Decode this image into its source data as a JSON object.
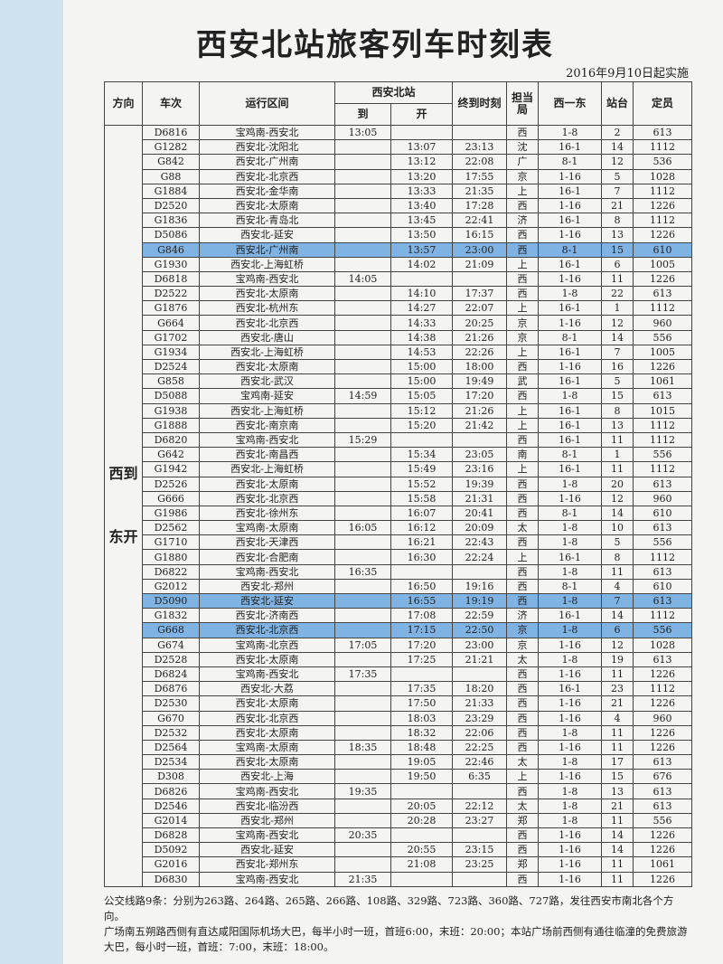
{
  "header": {
    "title": "西安北站旅客列车时刻表",
    "effective": "2016年9月10日起实施"
  },
  "table": {
    "columns": {
      "direction": "方向",
      "train": "车次",
      "route": "运行区间",
      "station": "西安北站",
      "arrive": "到",
      "depart": "开",
      "terminal": "终到时刻",
      "bureau": "担当局",
      "order": "西一东",
      "platform": "站台",
      "capacity": "定员"
    },
    "direction": "西到东开",
    "rows": [
      {
        "cells": [
          "D6816",
          "宝鸡南-西安北",
          "13:05",
          null,
          null,
          "西",
          "1-8",
          "2",
          "613"
        ]
      },
      {
        "cells": [
          "G1282",
          "西安北-沈阳北",
          null,
          "13:07",
          "23:13",
          "沈",
          "16-1",
          "14",
          "1112"
        ]
      },
      {
        "cells": [
          "G842",
          "西安北-广州南",
          null,
          "13:12",
          "22:08",
          "广",
          "8-1",
          "12",
          "536"
        ]
      },
      {
        "cells": [
          "G88",
          "西安北-北京西",
          null,
          "13:20",
          "17:55",
          "京",
          "1-16",
          "5",
          "1028"
        ]
      },
      {
        "cells": [
          "G1884",
          "西安北-金华南",
          null,
          "13:33",
          "21:35",
          "上",
          "16-1",
          "7",
          "1112"
        ]
      },
      {
        "cells": [
          "D2520",
          "西安北-太原南",
          null,
          "13:40",
          "17:28",
          "西",
          "1-16",
          "21",
          "1226"
        ]
      },
      {
        "cells": [
          "G1836",
          "西安北-青岛北",
          null,
          "13:45",
          "22:41",
          "济",
          "16-1",
          "8",
          "1112"
        ]
      },
      {
        "cells": [
          "D5086",
          "西安北-延安",
          null,
          "13:50",
          "16:15",
          "西",
          "1-16",
          "13",
          "1226"
        ]
      },
      {
        "cells": [
          "G846",
          "西安北-广州南",
          null,
          "13:57",
          "23:00",
          "西",
          "8-1",
          "15",
          "610"
        ],
        "highlight": true
      },
      {
        "cells": [
          "G1930",
          "西安北-上海虹桥",
          null,
          "14:02",
          "21:09",
          "上",
          "16-1",
          "6",
          "1005"
        ]
      },
      {
        "cells": [
          "D6818",
          "宝鸡南-西安北",
          "14:05",
          null,
          null,
          "西",
          "1-16",
          "11",
          "1226"
        ]
      },
      {
        "cells": [
          "D2522",
          "西安北-太原南",
          null,
          "14:10",
          "17:37",
          "西",
          "1-8",
          "22",
          "613"
        ]
      },
      {
        "cells": [
          "G1876",
          "西安北-杭州东",
          null,
          "14:27",
          "22:07",
          "上",
          "16-1",
          "1",
          "1112"
        ]
      },
      {
        "cells": [
          "G664",
          "西安北-北京西",
          null,
          "14:33",
          "20:25",
          "京",
          "1-16",
          "12",
          "960"
        ]
      },
      {
        "cells": [
          "G1702",
          "西安北-唐山",
          null,
          "14:38",
          "21:26",
          "京",
          "8-1",
          "14",
          "556"
        ]
      },
      {
        "cells": [
          "G1934",
          "西安北-上海虹桥",
          null,
          "14:53",
          "22:26",
          "上",
          "16-1",
          "7",
          "1005"
        ]
      },
      {
        "cells": [
          "D2524",
          "西安北-太原南",
          null,
          "15:00",
          "18:00",
          "西",
          "1-16",
          "16",
          "1226"
        ]
      },
      {
        "cells": [
          "G858",
          "西安北-武汉",
          null,
          "15:00",
          "19:49",
          "武",
          "16-1",
          "5",
          "1061"
        ]
      },
      {
        "cells": [
          "D5088",
          "宝鸡南-延安",
          "14:59",
          "15:05",
          "17:20",
          "西",
          "1-8",
          "15",
          "613"
        ]
      },
      {
        "cells": [
          "G1938",
          "西安北-上海虹桥",
          null,
          "15:12",
          "21:26",
          "上",
          "16-1",
          "8",
          "1015"
        ]
      },
      {
        "cells": [
          "G1888",
          "西安北-南京南",
          null,
          "15:20",
          "21:42",
          "上",
          "16-1",
          "13",
          "1112"
        ]
      },
      {
        "cells": [
          "D6820",
          "宝鸡南-西安北",
          "15:29",
          null,
          null,
          "西",
          "16-1",
          "11",
          "1112"
        ]
      },
      {
        "cells": [
          "G642",
          "西安北-南昌西",
          null,
          "15:34",
          "23:05",
          "南",
          "8-1",
          "1",
          "556"
        ]
      },
      {
        "cells": [
          "G1942",
          "西安北-上海虹桥",
          null,
          "15:49",
          "23:16",
          "上",
          "16-1",
          "11",
          "1112"
        ]
      },
      {
        "cells": [
          "D2526",
          "西安北-太原南",
          null,
          "15:52",
          "19:39",
          "西",
          "1-8",
          "20",
          "613"
        ]
      },
      {
        "cells": [
          "G666",
          "西安北-北京西",
          null,
          "15:58",
          "21:31",
          "西",
          "1-16",
          "12",
          "960"
        ]
      },
      {
        "cells": [
          "G1986",
          "西安北-徐州东",
          null,
          "16:07",
          "20:41",
          "西",
          "8-1",
          "14",
          "610"
        ]
      },
      {
        "cells": [
          "D2562",
          "宝鸡南-太原南",
          "16:05",
          "16:12",
          "20:09",
          "太",
          "1-8",
          "10",
          "613"
        ]
      },
      {
        "cells": [
          "G1710",
          "西安北-天津西",
          null,
          "16:21",
          "22:43",
          "西",
          "1-8",
          "5",
          "556"
        ]
      },
      {
        "cells": [
          "G1880",
          "西安北-合肥南",
          null,
          "16:30",
          "22:24",
          "上",
          "16-1",
          "8",
          "1112"
        ]
      },
      {
        "cells": [
          "D6822",
          "宝鸡南-西安北",
          "16:35",
          null,
          null,
          "西",
          "1-8",
          "11",
          "613"
        ]
      },
      {
        "cells": [
          "G2012",
          "西安北-郑州",
          null,
          "16:50",
          "19:16",
          "西",
          "8-1",
          "4",
          "610"
        ]
      },
      {
        "cells": [
          "D5090",
          "西安北-延安",
          null,
          "16:55",
          "19:19",
          "西",
          "1-8",
          "7",
          "613"
        ],
        "highlight": true
      },
      {
        "cells": [
          "G1832",
          "西安北-济南西",
          null,
          "17:08",
          "22:59",
          "济",
          "16-1",
          "14",
          "1112"
        ]
      },
      {
        "cells": [
          "G668",
          "西安北-北京西",
          null,
          "17:15",
          "22:50",
          "京",
          "1-8",
          "6",
          "556"
        ],
        "highlight": true
      },
      {
        "cells": [
          "G674",
          "宝鸡南-北京西",
          "17:05",
          "17:20",
          "23:00",
          "京",
          "1-16",
          "12",
          "1028"
        ]
      },
      {
        "cells": [
          "D2528",
          "西安北-太原南",
          null,
          "17:25",
          "21:21",
          "太",
          "1-8",
          "19",
          "613"
        ]
      },
      {
        "cells": [
          "D6824",
          "宝鸡南-西安北",
          "17:35",
          null,
          null,
          "西",
          "1-16",
          "11",
          "1226"
        ]
      },
      {
        "cells": [
          "D6876",
          "西安北-大荔",
          null,
          "17:35",
          "18:20",
          "西",
          "16-1",
          "23",
          "1112"
        ]
      },
      {
        "cells": [
          "D2530",
          "西安北-太原南",
          null,
          "17:50",
          "21:33",
          "西",
          "1-16",
          "21",
          "1226"
        ]
      },
      {
        "cells": [
          "G670",
          "西安北-北京西",
          null,
          "18:03",
          "23:29",
          "西",
          "1-16",
          "4",
          "960"
        ]
      },
      {
        "cells": [
          "D2532",
          "西安北-太原南",
          null,
          "18:32",
          "22:06",
          "西",
          "1-8",
          "11",
          "1226"
        ]
      },
      {
        "cells": [
          "D2564",
          "宝鸡南-太原南",
          "18:35",
          "18:48",
          "22:25",
          "西",
          "1-16",
          "11",
          "1226"
        ]
      },
      {
        "cells": [
          "D2534",
          "西安北-太原南",
          null,
          "19:05",
          "22:46",
          "太",
          "1-8",
          "17",
          "613"
        ]
      },
      {
        "cells": [
          "D308",
          "西安北-上海",
          null,
          "19:50",
          "6:35",
          "上",
          "1-16",
          "15",
          "676"
        ]
      },
      {
        "cells": [
          "D6826",
          "宝鸡南-西安北",
          "19:35",
          null,
          null,
          "西",
          "1-8",
          "13",
          "613"
        ]
      },
      {
        "cells": [
          "D2546",
          "西安北-临汾西",
          null,
          "20:05",
          "22:12",
          "太",
          "1-8",
          "21",
          "613"
        ]
      },
      {
        "cells": [
          "G2014",
          "西安北-郑州",
          null,
          "20:28",
          "23:27",
          "郑",
          "1-8",
          "11",
          "556"
        ]
      },
      {
        "cells": [
          "D6828",
          "宝鸡南-西安北",
          "20:35",
          null,
          null,
          "西",
          "1-16",
          "14",
          "1226"
        ]
      },
      {
        "cells": [
          "D5092",
          "西安北-延安",
          null,
          "20:55",
          "23:15",
          "西",
          "1-16",
          "14",
          "1226"
        ]
      },
      {
        "cells": [
          "G2016",
          "西安北-郑州东",
          null,
          "21:08",
          "23:25",
          "郑",
          "1-16",
          "11",
          "1061"
        ]
      },
      {
        "cells": [
          "D6830",
          "宝鸡南-西安北",
          "21:35",
          null,
          null,
          "西",
          "1-16",
          "11",
          "1226"
        ]
      }
    ]
  },
  "notes": [
    "公交线路9条：分别为263路、264路、265路、266路、108路、329路、723路、360路、727路，发往西安市南北各个方向。",
    "广场南五朔路西侧有直达咸阳国际机场大巴，每半小时一班，首班6:00，末班：20:00；本站广场前西侧有通往临潼的免费旅游大巴，每小时一班，首班：7:00，末班：18:00。"
  ]
}
